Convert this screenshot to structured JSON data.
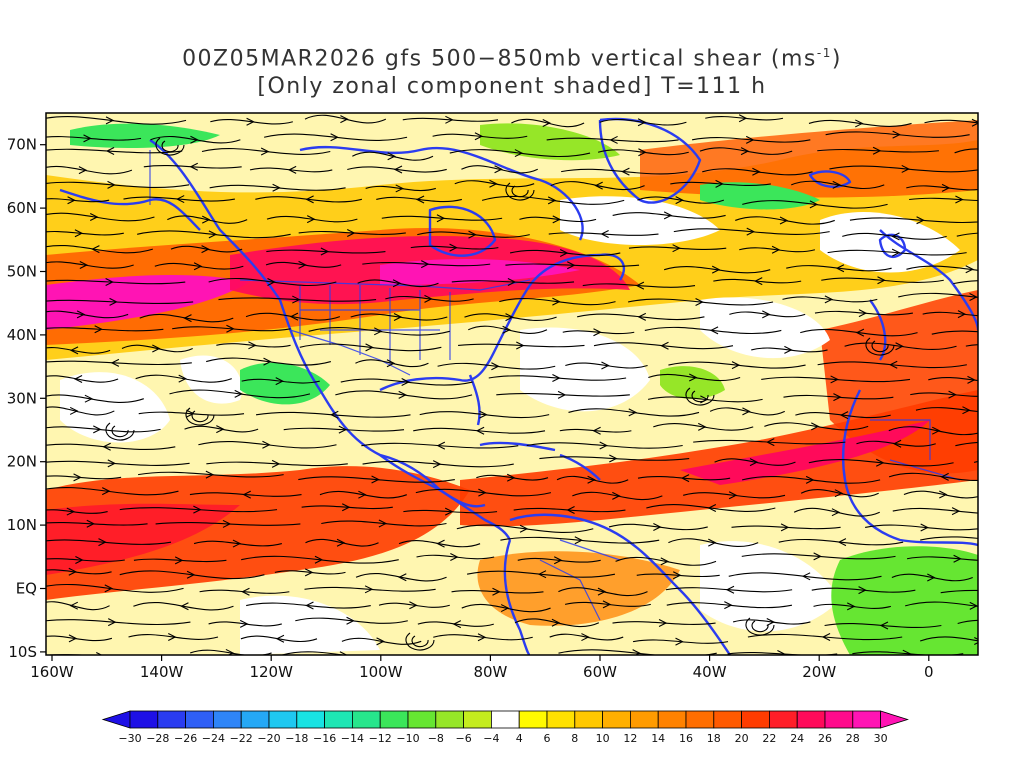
{
  "title": {
    "line1_prefix": "00Z05MAR2026 gfs 500−850mb vertical shear (ms",
    "line1_unit_exponent": "-1",
    "line1_suffix": ")",
    "line2": "[Only zonal component shaded] T=111 h"
  },
  "axes": {
    "lat_labels": [
      "70N",
      "60N",
      "50N",
      "40N",
      "30N",
      "20N",
      "10N",
      "EQ",
      "10S"
    ],
    "lon_labels": [
      "160W",
      "140W",
      "120W",
      "100W",
      "80W",
      "60W",
      "40W",
      "20W",
      "0"
    ]
  },
  "colorbar": {
    "labels": [
      "-30",
      "-28",
      "-26",
      "-24",
      "-22",
      "-20",
      "-18",
      "-16",
      "-14",
      "-12",
      "-10",
      "-8",
      "-6",
      "-4",
      "4",
      "6",
      "8",
      "10",
      "12",
      "14",
      "16",
      "18",
      "20",
      "22",
      "24",
      "26",
      "28",
      "30"
    ],
    "colors": [
      "#1e10e6",
      "#2a3cf0",
      "#2f5ff5",
      "#2f85f7",
      "#25a8f5",
      "#1fc8f0",
      "#18e3e3",
      "#1ee6b4",
      "#27e68c",
      "#3be65a",
      "#66e632",
      "#96e628",
      "#c4ec1e",
      "#ffffff",
      "#fffa00",
      "#ffe100",
      "#ffc800",
      "#ffaf00",
      "#ff9b00",
      "#ff8200",
      "#ff6e00",
      "#ff5a00",
      "#ff3c00",
      "#ff1e28",
      "#ff0a5a",
      "#ff0a8c",
      "#ff14b4"
    ],
    "below_color": "#1e10e6",
    "above_color": "#ff14b4"
  },
  "shear_regions": [
    {
      "name": "north-pacific-jet",
      "color": "#ff5a00"
    },
    {
      "name": "north-pacific-jet-core",
      "color": "#ff14b4"
    },
    {
      "name": "north-america-jet",
      "color": "#ff0a5a"
    },
    {
      "name": "tropical-pacific-jet",
      "color": "#ff3c00"
    },
    {
      "name": "tropical-atlantic-jet",
      "color": "#ff3c00"
    },
    {
      "name": "easterly-africa",
      "color": "#66e632"
    },
    {
      "name": "easterly-arctic",
      "color": "#3be65a"
    }
  ],
  "map_colors": {
    "coastline": "#2b3cf0",
    "streamline": "#000000",
    "frame": "#000000"
  }
}
